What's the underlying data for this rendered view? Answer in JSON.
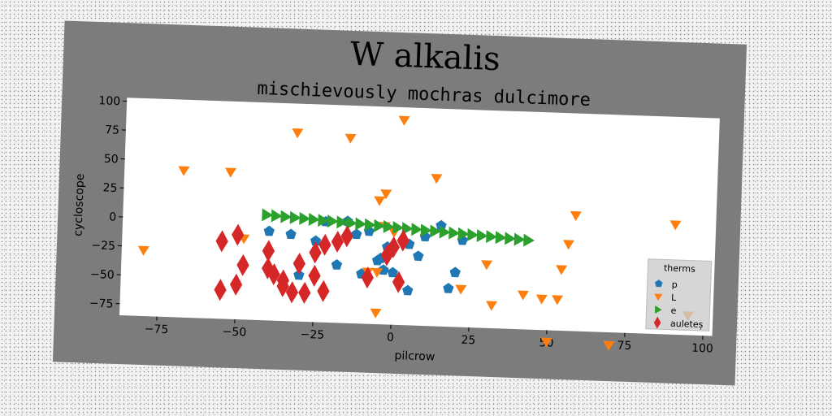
{
  "chart_data": {
    "type": "scatter",
    "title": "W alkalis",
    "subtitle": "mischievously mochras dulcimore",
    "xlabel": "pilcrow",
    "ylabel": "cycloscope",
    "xlim": [
      -87,
      103
    ],
    "ylim": [
      -85,
      103
    ],
    "xticks": [
      -75,
      -50,
      -25,
      0,
      25,
      50,
      75,
      100
    ],
    "xtick_labels": [
      "−75",
      "−50",
      "−25",
      "0",
      "25",
      "50",
      "75",
      "100"
    ],
    "yticks": [
      -75,
      -50,
      -25,
      0,
      25,
      50,
      75,
      100
    ],
    "ytick_labels": [
      "−75",
      "−50",
      "−25",
      "0",
      "25",
      "50",
      "75",
      "100"
    ],
    "grid": false,
    "legend": {
      "title": "therms",
      "placement": "lower right"
    },
    "series": [
      {
        "name": "p",
        "color": "#1f77b4",
        "marker": "pentagon",
        "points": [
          [
            -40,
            -8
          ],
          [
            -33,
            -10
          ],
          [
            -25,
            -15
          ],
          [
            -22,
            2
          ],
          [
            -12,
            -8
          ],
          [
            -8,
            -5
          ],
          [
            -5,
            -30
          ],
          [
            -3,
            -38
          ],
          [
            -10,
            -42
          ],
          [
            -30,
            -45
          ],
          [
            -4,
            -28
          ],
          [
            0,
            -40
          ],
          [
            2,
            -48
          ],
          [
            5,
            -55
          ],
          [
            8,
            -25
          ],
          [
            20,
            -38
          ],
          [
            18,
            -52
          ],
          [
            15,
            2
          ],
          [
            22,
            -10
          ],
          [
            10,
            -8
          ],
          [
            5,
            -15
          ],
          [
            -15,
            3
          ],
          [
            -18,
            -35
          ],
          [
            -2,
            -18
          ]
        ]
      },
      {
        "name": "L",
        "color": "#ff7f0e",
        "marker": "triangle-down",
        "points": [
          [
            -80,
            -28
          ],
          [
            -68,
            42
          ],
          [
            -53,
            42
          ],
          [
            -48,
            -15
          ],
          [
            -32,
            78
          ],
          [
            -15,
            75
          ],
          [
            -5,
            22
          ],
          [
            -3,
            28
          ],
          [
            2,
            92
          ],
          [
            -3,
            0
          ],
          [
            0,
            -5
          ],
          [
            13,
            43
          ],
          [
            -8,
            -40
          ],
          [
            -5,
            -40
          ],
          [
            -5,
            -75
          ],
          [
            22,
            -52
          ],
          [
            30,
            -30
          ],
          [
            32,
            -65
          ],
          [
            42,
            -55
          ],
          [
            48,
            -58
          ],
          [
            53,
            -58
          ],
          [
            54,
            -32
          ],
          [
            56,
            -10
          ],
          [
            58,
            15
          ],
          [
            50,
            -95
          ],
          [
            70,
            -96
          ],
          [
            90,
            10
          ],
          [
            95,
            -68
          ]
        ]
      },
      {
        "name": "e",
        "color": "#2ca02c",
        "marker": "triangle-right",
        "points": [
          [
            -41,
            6
          ],
          [
            -38,
            5.5
          ],
          [
            -35,
            5
          ],
          [
            -32,
            4.5
          ],
          [
            -29,
            4
          ],
          [
            -26,
            3.5
          ],
          [
            -23,
            3
          ],
          [
            -20,
            2.5
          ],
          [
            -17,
            2
          ],
          [
            -14,
            1.5
          ],
          [
            -11,
            1
          ],
          [
            -8,
            0.5
          ],
          [
            -5,
            0
          ],
          [
            -2,
            -0.5
          ],
          [
            1,
            -1
          ],
          [
            4,
            -1.5
          ],
          [
            7,
            -2
          ],
          [
            10,
            -2.5
          ],
          [
            13,
            -3
          ],
          [
            16,
            -3.5
          ],
          [
            19,
            -4
          ],
          [
            22,
            -4.5
          ],
          [
            25,
            -5
          ],
          [
            28,
            -5.5
          ],
          [
            31,
            -6
          ],
          [
            34,
            -6.5
          ],
          [
            37,
            -7
          ],
          [
            40,
            -7.5
          ],
          [
            43,
            -8
          ]
        ]
      },
      {
        "name": "auleteș",
        "color": "#d62728",
        "marker": "diamond",
        "points": [
          [
            -55,
            -18
          ],
          [
            -50,
            -12
          ],
          [
            -55,
            -60
          ],
          [
            -50,
            -55
          ],
          [
            -48,
            -38
          ],
          [
            -40,
            -25
          ],
          [
            -38,
            -45
          ],
          [
            -35,
            -55
          ],
          [
            -32,
            -60
          ],
          [
            -28,
            -60
          ],
          [
            -22,
            -58
          ],
          [
            -30,
            -35
          ],
          [
            -25,
            -25
          ],
          [
            -22,
            -18
          ],
          [
            -18,
            -15
          ],
          [
            -25,
            -45
          ],
          [
            -15,
            -10
          ],
          [
            -8,
            -45
          ],
          [
            -2,
            -25
          ],
          [
            0,
            -18
          ],
          [
            3,
            -12
          ],
          [
            2,
            -48
          ],
          [
            -35,
            -50
          ],
          [
            -40,
            -40
          ]
        ]
      }
    ]
  }
}
